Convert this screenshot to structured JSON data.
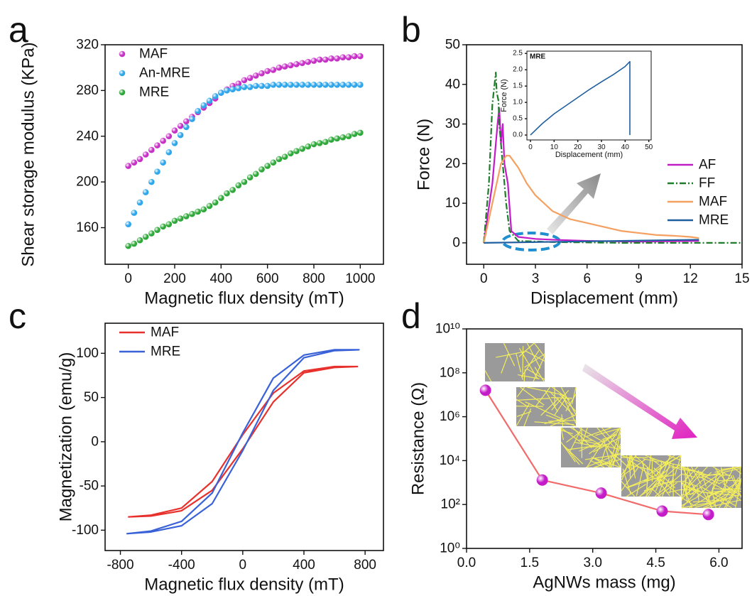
{
  "chart_data": [
    {
      "panel": "a",
      "type": "scatter",
      "x_label": "Magnetic flux density (mT)",
      "y_label": "Shear storage modulus (KPa)",
      "x": [
        0,
        25,
        50,
        75,
        100,
        125,
        150,
        175,
        200,
        225,
        250,
        275,
        300,
        325,
        350,
        375,
        400,
        425,
        450,
        475,
        500,
        525,
        550,
        575,
        600,
        625,
        650,
        675,
        700,
        725,
        750,
        775,
        800,
        825,
        850,
        875,
        900,
        925,
        950,
        975,
        1000
      ],
      "series": [
        {
          "name": "MAF",
          "color": "#c630c6",
          "values": [
            214,
            217,
            220,
            224,
            228,
            232,
            236,
            240,
            245,
            249,
            253,
            257,
            261,
            265,
            269,
            273,
            278,
            281,
            284,
            286,
            289,
            291,
            293,
            295,
            297,
            298,
            300,
            301,
            302,
            303,
            304,
            305,
            306,
            307,
            307,
            308,
            308,
            309,
            309,
            310,
            310
          ]
        },
        {
          "name": "An-MRE",
          "color": "#2fa6ea",
          "values": [
            163,
            173,
            182,
            191,
            200,
            209,
            217,
            226,
            234,
            241,
            248,
            255,
            262,
            267,
            271,
            275,
            278,
            280,
            281,
            282,
            283,
            283,
            284,
            284,
            284,
            285,
            285,
            285,
            285,
            285,
            285,
            285,
            285,
            285,
            285,
            285,
            285,
            285,
            285,
            285,
            285
          ]
        },
        {
          "name": "MRE",
          "color": "#2fa83a",
          "values": [
            144,
            146,
            149,
            152,
            155,
            158,
            161,
            163,
            166,
            168,
            170,
            172,
            174,
            176,
            179,
            182,
            186,
            190,
            193,
            197,
            200,
            204,
            207,
            211,
            214,
            217,
            220,
            222,
            225,
            227,
            229,
            231,
            233,
            234,
            235,
            237,
            238,
            239,
            240,
            242,
            243
          ]
        }
      ],
      "xlim": [
        -100,
        1100
      ],
      "xticks": [
        0,
        200,
        400,
        600,
        800,
        1000
      ],
      "ylim": [
        128,
        320
      ],
      "yticks": [
        160,
        200,
        240,
        280,
        320
      ],
      "legend": "upper left"
    },
    {
      "panel": "b",
      "type": "line",
      "x_label": "Displacement (mm)",
      "y_label": "Force (N)",
      "series": [
        {
          "name": "AF",
          "color": "#c21cc8",
          "style": "solid",
          "x": [
            0,
            0.5,
            0.8,
            0.9,
            1.0,
            1.1,
            1.2,
            1.4,
            1.6,
            2,
            3,
            4,
            6,
            9,
            12.5
          ],
          "values": [
            0,
            15,
            30,
            34,
            25,
            30,
            20,
            15,
            3,
            1.5,
            1,
            0.8,
            0.5,
            0.3,
            0.5
          ]
        },
        {
          "name": "FF",
          "color": "#1e7d2a",
          "style": "dash-dot",
          "x": [
            0,
            0.3,
            0.5,
            0.7,
            0.75,
            0.85,
            0.9,
            1.0,
            1.1,
            1.2,
            1.3,
            1.5,
            2,
            4,
            8,
            15
          ],
          "values": [
            0,
            15,
            35,
            43,
            38,
            36,
            30,
            25,
            20,
            15,
            10,
            3,
            0.5,
            0.2,
            0,
            0
          ]
        },
        {
          "name": "MAF",
          "color": "#f5a060",
          "style": "solid",
          "x": [
            0,
            0.5,
            1,
            1.3,
            1.5,
            2,
            2.5,
            3,
            4,
            5,
            6,
            7,
            8,
            9,
            10,
            11,
            12,
            12.5
          ],
          "values": [
            0,
            10,
            20,
            22,
            22,
            19,
            15,
            12,
            8,
            6,
            5,
            4,
            3,
            2.5,
            2,
            1.8,
            1.5,
            1.2
          ]
        },
        {
          "name": "MRE",
          "color": "#1f5fa0",
          "style": "solid",
          "x": [
            0,
            12.5
          ],
          "values": [
            0,
            0.8
          ]
        }
      ],
      "xlim": [
        -1,
        15
      ],
      "xticks": [
        0,
        3,
        6,
        9,
        12,
        15
      ],
      "ylim": [
        -5.4,
        50
      ],
      "yticks": [
        0,
        10,
        20,
        30,
        40,
        50
      ],
      "legend": "lower right",
      "inset": {
        "type": "line",
        "annotation": "MRE",
        "x_label": "Displacement (mm)",
        "y_label": "Force (N)",
        "series": [
          {
            "color": "#1f5fa0",
            "style": "solid",
            "x": [
              0,
              5,
              10,
              15,
              20,
              25,
              30,
              35,
              40,
              42,
              42
            ],
            "values": [
              0,
              0.35,
              0.65,
              0.9,
              1.15,
              1.4,
              1.63,
              1.85,
              2.1,
              2.25,
              0
            ]
          }
        ],
        "xlim": [
          -1.5,
          51
        ],
        "xticks": [
          0,
          10,
          20,
          30,
          40,
          50
        ],
        "ylim": [
          -0.15,
          2.57
        ],
        "yticks": [
          {
            "value": 0,
            "label": "0.0"
          },
          0.5,
          {
            "value": 1,
            "label": "1.0"
          },
          1.5,
          {
            "value": 2,
            "label": "2.0"
          },
          2.5
        ]
      }
    },
    {
      "panel": "c",
      "type": "line",
      "x_label": "Magnetic flux density (mT)",
      "y_label": "Magnetization (emu/g)",
      "series": [
        {
          "name": "MAF",
          "color": "#e8302c",
          "style": "solid",
          "x": [
            -750,
            -600,
            -400,
            -200,
            0,
            200,
            400,
            600,
            750,
            750,
            600,
            400,
            200,
            0,
            -200,
            -400,
            -600,
            -750
          ],
          "values": [
            -85,
            -84,
            -78,
            -55,
            -8,
            45,
            78,
            84,
            85,
            85,
            85,
            80,
            55,
            8,
            -45,
            -75,
            -83,
            -85
          ]
        },
        {
          "name": "MRE",
          "color": "#3a62d8",
          "style": "solid",
          "x": [
            -760,
            -600,
            -400,
            -200,
            0,
            200,
            400,
            600,
            760,
            760,
            600,
            400,
            200,
            0,
            -200,
            -400,
            -600,
            -760
          ],
          "values": [
            -104,
            -102,
            -95,
            -70,
            -10,
            58,
            95,
            103,
            104,
            104,
            104,
            98,
            72,
            10,
            -58,
            -90,
            -101,
            -104
          ]
        }
      ],
      "xlim": [
        -900,
        920
      ],
      "xticks": [
        -800,
        -400,
        0,
        400,
        800
      ],
      "ylim": [
        -123,
        134
      ],
      "yticks": [
        -100,
        -50,
        0,
        50,
        100
      ],
      "legend": "upper left"
    },
    {
      "panel": "d",
      "type": "line",
      "markers": true,
      "log_y": true,
      "x_label": "AgNWs mass (mg)",
      "y_label": "Resistance (Ω)",
      "x": [
        0.45,
        1.8,
        3.2,
        4.65,
        5.75
      ],
      "series": [
        {
          "color": "#f26b6b",
          "marker_color": "#c41cc8",
          "style": "solid",
          "values": [
            16000000,
            1300,
            330,
            50,
            35
          ]
        }
      ],
      "xlim": [
        0,
        6.55
      ],
      "xticks": [
        {
          "value": 0,
          "label": "0.0"
        },
        1.5,
        {
          "value": 3,
          "label": "3.0"
        },
        4.5,
        {
          "value": 6,
          "label": "6.0"
        }
      ],
      "ylim": [
        1,
        10000000000
      ],
      "yticks": [
        {
          "value": 1,
          "label": "10⁰"
        },
        {
          "value": 100,
          "label": "10²"
        },
        {
          "value": 10000,
          "label": "10⁴"
        },
        {
          "value": 1000000,
          "label": "10⁶"
        },
        {
          "value": 100000000,
          "label": "10⁸"
        },
        {
          "value": 10000000000,
          "label": "10¹⁰"
        }
      ]
    }
  ]
}
